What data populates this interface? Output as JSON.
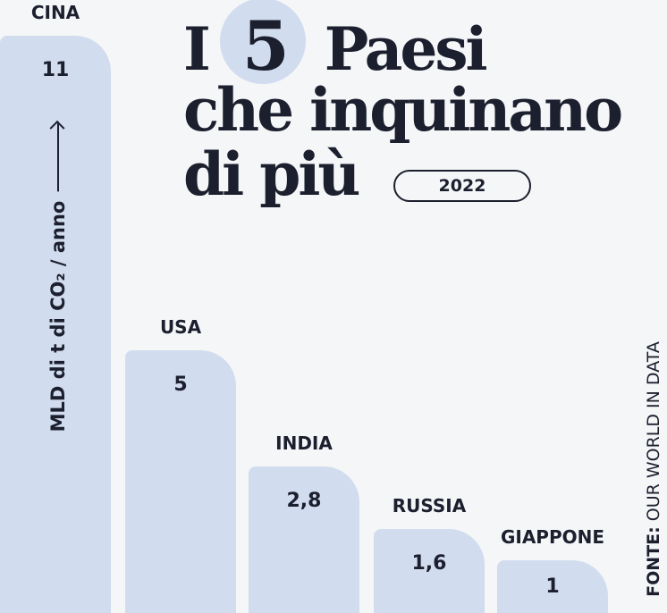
{
  "title": {
    "line1_pre": "I",
    "line1_number": "5",
    "line1_post": "Paesi",
    "line2": "che inquinano",
    "line3": "di più"
  },
  "year_badge": "2022",
  "source": {
    "label": "FONTE:",
    "text": "OUR WORLD IN DATA"
  },
  "colors": {
    "bar": "#d1dcee",
    "text": "#1c1f2e",
    "background": "#f5f6f8"
  },
  "chart_data": {
    "type": "bar",
    "categories": [
      "CINA",
      "USA",
      "INDIA",
      "RUSSIA",
      "GIAPPONE"
    ],
    "values": [
      11,
      5,
      2.8,
      1.6,
      1
    ],
    "value_labels": [
      "11",
      "5",
      "2,8",
      "1,6",
      "1"
    ],
    "ylabel": "MLD di t di CO₂ / anno",
    "ylim": [
      0,
      11
    ]
  }
}
